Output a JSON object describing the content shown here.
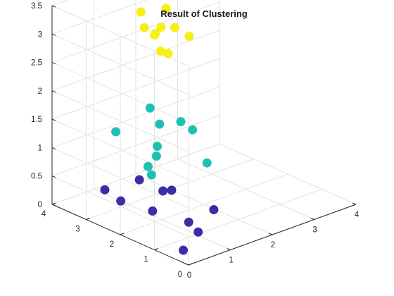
{
  "chart_data": {
    "type": "scatter3d",
    "title": "Result of Clustering",
    "xlim": [
      0,
      4
    ],
    "ylim": [
      0,
      4
    ],
    "zlim": [
      0,
      3.5
    ],
    "x_ticks": [
      "0",
      "1",
      "2",
      "3",
      "4"
    ],
    "y_ticks": [
      "0",
      "1",
      "2",
      "3",
      "4"
    ],
    "z_ticks": [
      "0",
      "0.5",
      "1",
      "1.5",
      "2",
      "2.5",
      "3",
      "3.5"
    ],
    "grid": true,
    "box": "open",
    "colors": {
      "cluster1": "#3a2ea6",
      "cluster2": "#1fc0b4",
      "cluster3": "#f7ef15"
    },
    "clusters": [
      {
        "color_key": "cluster1",
        "points": [
          [
            0.2,
            0.4,
            0.1
          ],
          [
            0.8,
            0.7,
            0.18
          ],
          [
            0.9,
            1.1,
            0.22
          ],
          [
            1.5,
            1.1,
            0.28
          ],
          [
            0.2,
            1.3,
            0.55
          ],
          [
            0.9,
            1.6,
            0.65
          ],
          [
            1.1,
            2.1,
            0.45
          ],
          [
            0.5,
            2.6,
            0.3
          ],
          [
            0.7,
            2.3,
            0.7
          ],
          [
            0.2,
            2.7,
            0.55
          ]
        ]
      },
      {
        "color_key": "cluster2",
        "points": [
          [
            0.5,
            1.7,
            1.0
          ],
          [
            0.5,
            1.8,
            1.12
          ],
          [
            0.7,
            1.8,
            1.25
          ],
          [
            0.8,
            1.9,
            1.37
          ],
          [
            1.4,
            1.6,
            1.58
          ],
          [
            1.2,
            1.7,
            1.75
          ],
          [
            1.1,
            2.2,
            1.6
          ],
          [
            1.5,
            1.3,
            1.05
          ],
          [
            1.2,
            2.6,
            1.75
          ],
          [
            0.3,
            2.5,
            1.6
          ]
        ]
      },
      {
        "color_key": "cluster3",
        "points": [
          [
            0.8,
            1.8,
            3.07
          ],
          [
            0.9,
            1.7,
            3.03
          ],
          [
            0.9,
            2.1,
            3.25
          ],
          [
            1.3,
            2.0,
            3.3
          ],
          [
            1.4,
            1.7,
            3.2
          ],
          [
            1.0,
            2.2,
            3.22
          ],
          [
            1.5,
            2.5,
            3.45
          ],
          [
            0.9,
            2.5,
            3.55
          ],
          [
            0.9,
            2.4,
            3.3
          ],
          [
            1.3,
            2.4,
            3.2
          ]
        ]
      }
    ]
  }
}
